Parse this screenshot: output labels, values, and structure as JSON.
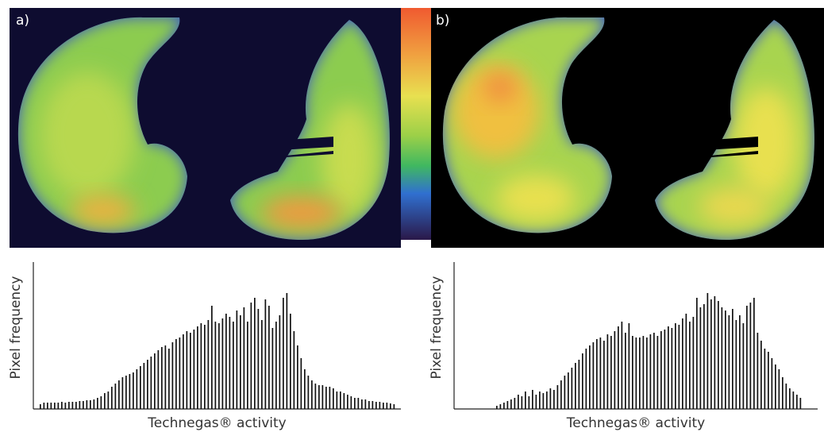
{
  "panels": [
    "a)",
    "b)"
  ],
  "chart_data": [
    {
      "type": "bar",
      "ylabel": "Pixel frequency",
      "xlabel": "Technegas® activity",
      "color": "#111111",
      "ylim": [
        0,
        185
      ],
      "values": [
        6,
        8,
        8,
        8,
        8,
        8,
        9,
        8,
        9,
        9,
        9,
        10,
        10,
        11,
        11,
        12,
        14,
        16,
        20,
        22,
        28,
        32,
        36,
        40,
        42,
        44,
        46,
        50,
        54,
        58,
        62,
        66,
        70,
        74,
        78,
        80,
        76,
        84,
        88,
        90,
        94,
        98,
        96,
        100,
        104,
        108,
        106,
        112,
        130,
        110,
        108,
        114,
        120,
        116,
        110,
        124,
        118,
        128,
        110,
        134,
        140,
        126,
        112,
        138,
        130,
        102,
        110,
        118,
        140,
        146,
        120,
        98,
        80,
        64,
        50,
        42,
        36,
        32,
        30,
        30,
        28,
        28,
        26,
        22,
        22,
        20,
        18,
        16,
        14,
        14,
        12,
        12,
        10,
        10,
        9,
        9,
        8,
        8,
        7,
        6
      ]
    },
    {
      "type": "bar",
      "ylabel": "Pixel frequency",
      "xlabel": "Technegas® activity",
      "color": "#111111",
      "ylim": [
        0,
        185
      ],
      "values": [
        4,
        6,
        8,
        10,
        12,
        14,
        18,
        16,
        22,
        16,
        24,
        18,
        22,
        20,
        22,
        26,
        24,
        30,
        36,
        42,
        46,
        52,
        58,
        62,
        70,
        76,
        80,
        84,
        88,
        90,
        86,
        94,
        92,
        98,
        104,
        110,
        96,
        108,
        92,
        90,
        90,
        92,
        90,
        94,
        96,
        92,
        98,
        100,
        104,
        102,
        108,
        106,
        114,
        120,
        110,
        116,
        140,
        128,
        132,
        146,
        138,
        142,
        136,
        128,
        124,
        118,
        126,
        112,
        118,
        108,
        130,
        134,
        140,
        96,
        86,
        76,
        72,
        64,
        56,
        50,
        40,
        32,
        26,
        22,
        18,
        14
      ]
    }
  ]
}
